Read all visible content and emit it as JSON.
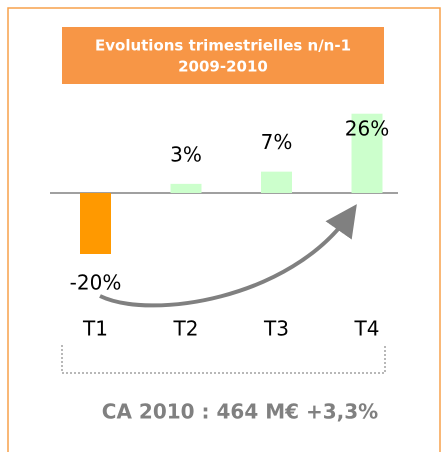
{
  "chart_data": {
    "type": "bar",
    "title": "Evolutions trimestrielles n/n-1",
    "subtitle": "2009-2010",
    "categories": [
      "T1",
      "T2",
      "T3",
      "T4"
    ],
    "values": [
      -20,
      3,
      7,
      26
    ],
    "value_labels": [
      "-20%",
      "3%",
      "7%",
      "26%"
    ],
    "colors": [
      "#ff9900",
      "#ccffcc",
      "#ccffcc",
      "#ccffcc"
    ],
    "annotation": "CA  2010 : 464 M€ +3,3%"
  }
}
